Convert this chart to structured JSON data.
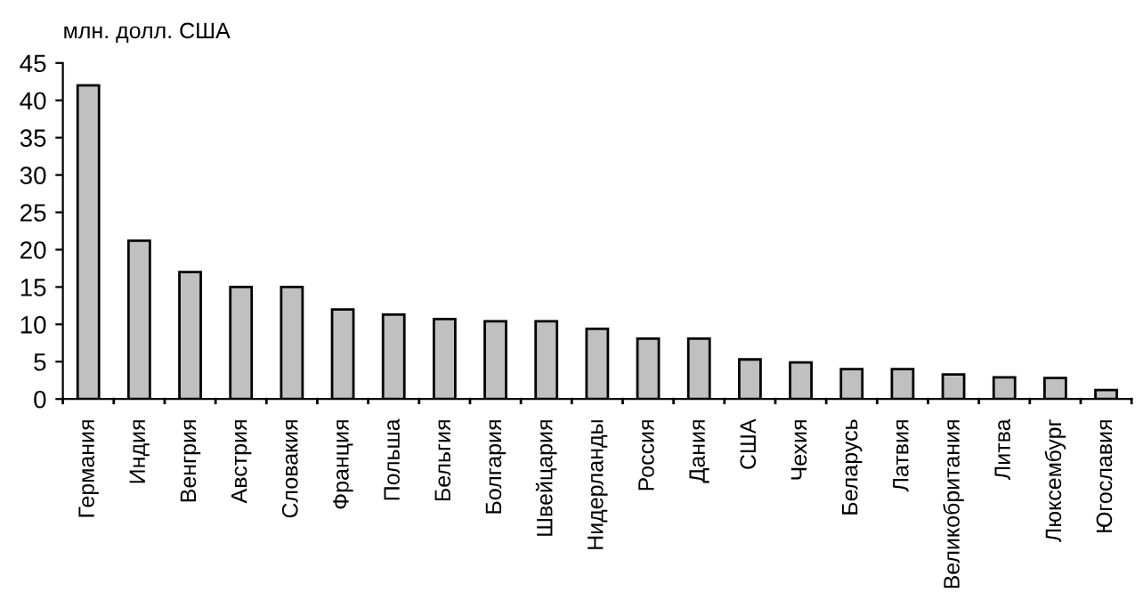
{
  "chart_data": {
    "type": "bar",
    "ylabel": "млн. долл. США",
    "categories": [
      "Германия",
      "Индия",
      "Венгрия",
      "Австрия",
      "Словакия",
      "Франция",
      "Польша",
      "Бельгия",
      "Болгария",
      "Швейцария",
      "Нидерланды",
      "Россия",
      "Дания",
      "США",
      "Чехия",
      "Беларусь",
      "Латвия",
      "Великобритания",
      "Литва",
      "Люксембург",
      "Югославия"
    ],
    "values": [
      42,
      21.2,
      17,
      15,
      15,
      12,
      11.3,
      10.7,
      10.4,
      10.4,
      9.4,
      8.1,
      8.1,
      5.3,
      4.9,
      4.0,
      4.0,
      3.3,
      2.9,
      2.8,
      1.2
    ],
    "color": "#c0c0c0",
    "ylim": [
      0,
      45
    ],
    "yticks": [
      0,
      5,
      10,
      15,
      20,
      25,
      30,
      35,
      40,
      45
    ],
    "grid": false,
    "legend": false
  }
}
